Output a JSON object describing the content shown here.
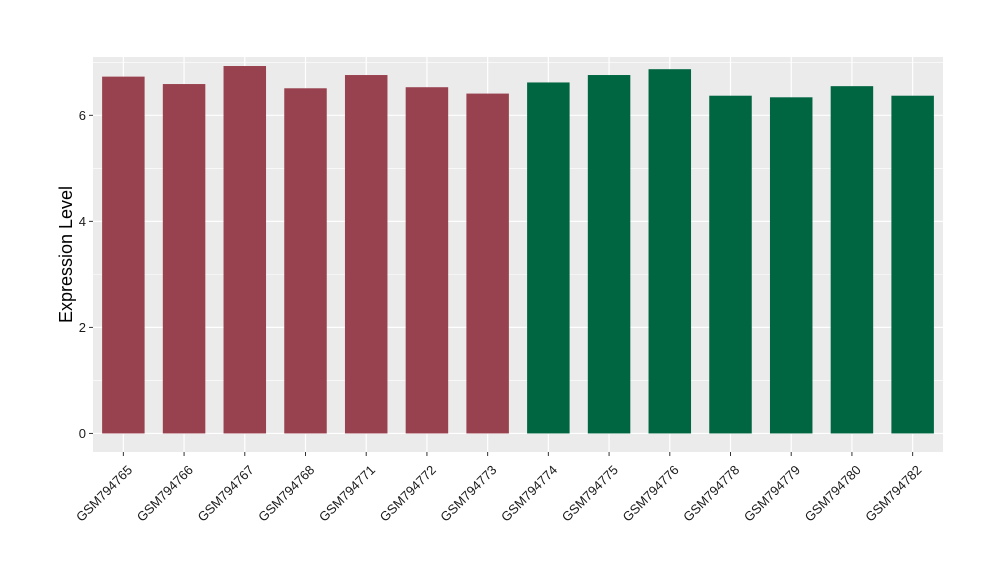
{
  "chart_data": {
    "type": "bar",
    "title": "",
    "xlabel": "",
    "ylabel": "Expression Level",
    "ylim": [
      -0.35,
      7.1
    ],
    "yticks": [
      0,
      2,
      4,
      6
    ],
    "grid": true,
    "legend": "none",
    "categories": [
      "GSM794765",
      "GSM794766",
      "GSM794767",
      "GSM794768",
      "GSM794771",
      "GSM794772",
      "GSM794773",
      "GSM794774",
      "GSM794775",
      "GSM794776",
      "GSM794778",
      "GSM794779",
      "GSM794780",
      "GSM794782"
    ],
    "values": [
      6.73,
      6.59,
      6.93,
      6.51,
      6.76,
      6.53,
      6.41,
      6.62,
      6.76,
      6.87,
      6.37,
      6.34,
      6.55,
      6.37
    ],
    "groups": [
      "1",
      "1",
      "1",
      "1",
      "1",
      "1",
      "1",
      "2",
      "2",
      "2",
      "2",
      "2",
      "2",
      "2"
    ],
    "colors": {
      "group1": "#99424F",
      "group2": "#006642",
      "panel": "#EBEBEB",
      "grid": "#FFFFFF"
    }
  }
}
